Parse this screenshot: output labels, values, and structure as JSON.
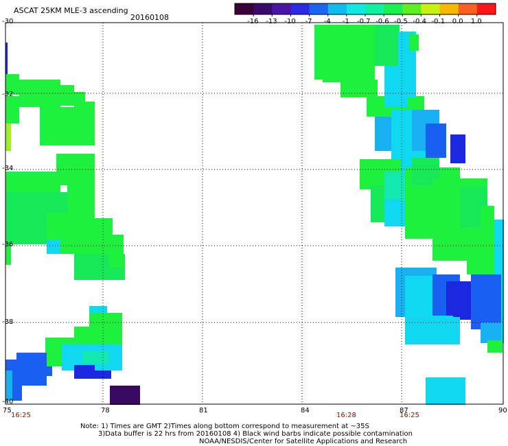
{
  "title": "ASCAT 25KM MLE-3 ascending",
  "date": "20160108",
  "colorbar": {
    "labels": [
      "-16",
      "-13",
      "-10",
      "-7",
      "-4",
      "-1",
      "-0.7",
      "-0.6",
      "-0.5",
      "-0.4",
      "-0.1",
      "0.0",
      "1.0"
    ],
    "colors": [
      "#3a0038",
      "#3a0a6a",
      "#4a14a8",
      "#2a2ae0",
      "#1a66f0",
      "#12b8f0",
      "#10e8e0",
      "#10f0a0",
      "#1cf050",
      "#5cf020",
      "#c8f010",
      "#f8b800",
      "#f86020",
      "#f81818"
    ]
  },
  "y_axis": {
    "labels": [
      "-30",
      "-32",
      "-34",
      "-36",
      "-38",
      "-40"
    ],
    "values": [
      -30,
      -32,
      -34,
      -36,
      -38,
      -40
    ]
  },
  "x_axis": {
    "labels": [
      "75",
      "78",
      "81",
      "84",
      "87",
      "90"
    ],
    "values": [
      75,
      78,
      81,
      84,
      87,
      90
    ]
  },
  "times": [
    {
      "label": "16:25",
      "lon": 75.4
    },
    {
      "label": "16:28",
      "lon": 84.6
    },
    {
      "label": "16:25",
      "lon": 86.6
    }
  ],
  "notes": [
    "Note: 1) Times are GMT 2)Times along bottom correspond to measurement at ~35S",
    "3)Data buffer is 22 hrs from 20160108 4) Black wind barbs indicate possible contamination",
    "NOAA/NESDIS/Center for Satellite Applications and Research"
  ],
  "colors": {
    "green": "#1ef040",
    "green2": "#16e858",
    "teal": "#12e8b0",
    "cyan": "#10d8f0",
    "lightblue": "#18b0f0",
    "blue": "#1a60f0",
    "darkblue": "#1c28e0",
    "purple": "#3a0a60",
    "yellowgreen": "#a0f020"
  }
}
